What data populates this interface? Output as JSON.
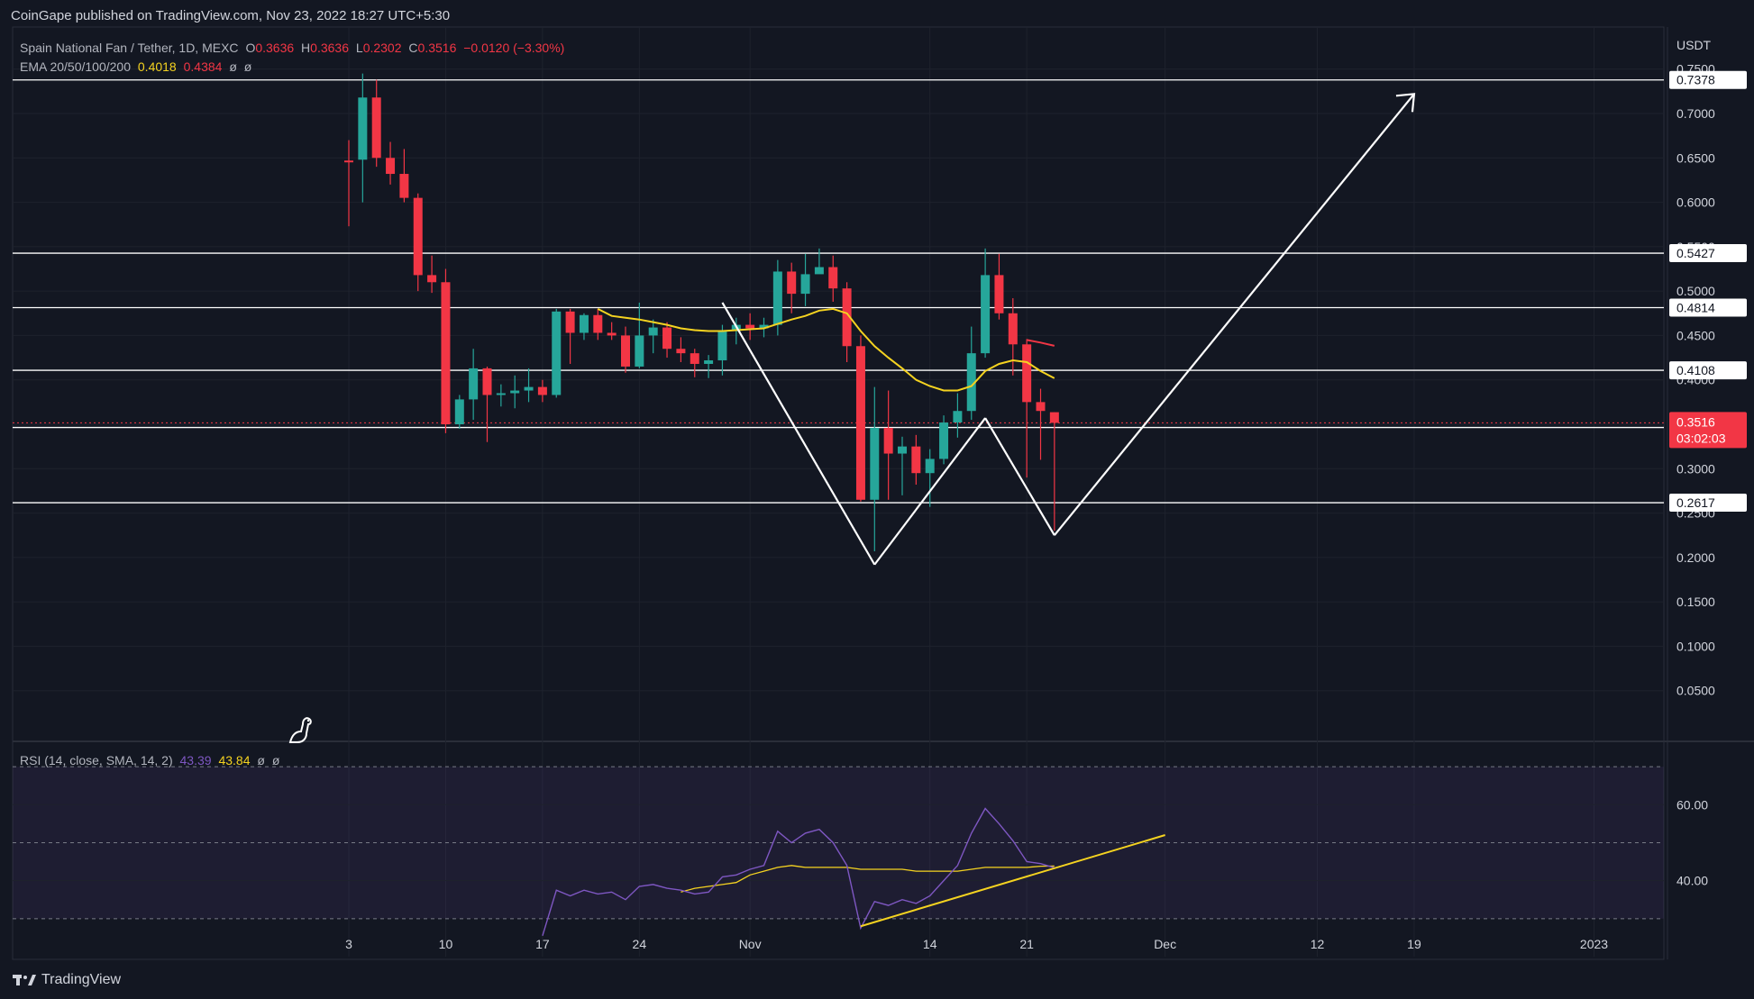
{
  "publisher": "CoinGape published on TradingView.com, Nov 23, 2022 18:27 UTC+5:30",
  "legend": {
    "symbol": "Spain National Fan / Tether, 1D, MEXC",
    "o_label": "O",
    "o_value": "0.3636",
    "h_label": "H",
    "h_value": "0.3636",
    "l_label": "L",
    "l_value": "0.2302",
    "c_label": "C",
    "c_value": "0.3516",
    "change": "−0.0120 (−3.30%)",
    "ema_label": "EMA 20/50/100/200",
    "ema_v1": "0.4018",
    "ema_v2": "0.4384",
    "ema_v3": "ø",
    "ema_v4": "ø",
    "rsi_label": "RSI (14, close, SMA, 14, 2)",
    "rsi_v1": "43.39",
    "rsi_v2": "43.84",
    "rsi_v3": "ø",
    "rsi_v4": "ø"
  },
  "colors": {
    "background": "#131722",
    "up": "#26a69a",
    "down": "#f23645",
    "ema20": "#f5d320",
    "ema50": "#f23645",
    "rsi": "#7e57c2",
    "rsi_ma": "#f5d320",
    "grid": "#1e222d",
    "lines": "#ffffff"
  },
  "footer": {
    "brand": "TradingView"
  },
  "chart_data": {
    "type": "candlestick",
    "price_unit": "USDT",
    "ylim": [
      0.0,
      0.77
    ],
    "price_ticks": [
      "0.7500",
      "0.7000",
      "0.6500",
      "0.6000",
      "0.5500",
      "0.5000",
      "0.4500",
      "0.4000",
      "0.3500",
      "0.3000",
      "0.2500",
      "0.2000",
      "0.1500",
      "0.1000",
      "0.0500"
    ],
    "x_ticks": [
      {
        "label": "3",
        "day": 3
      },
      {
        "label": "10",
        "day": 10
      },
      {
        "label": "17",
        "day": 17
      },
      {
        "label": "24",
        "day": 24
      },
      {
        "label": "Nov",
        "day": 32
      },
      {
        "label": "14",
        "day": 45
      },
      {
        "label": "21",
        "day": 52
      },
      {
        "label": "Dec",
        "day": 62
      },
      {
        "label": "12",
        "day": 73
      },
      {
        "label": "19",
        "day": 80
      },
      {
        "label": "2023",
        "day": 93
      }
    ],
    "candles": [
      {
        "day": 3,
        "o": 0.647,
        "h": 0.67,
        "l": 0.573,
        "c": 0.645
      },
      {
        "day": 4,
        "o": 0.648,
        "h": 0.745,
        "l": 0.6,
        "c": 0.718
      },
      {
        "day": 5,
        "o": 0.718,
        "h": 0.738,
        "l": 0.64,
        "c": 0.65
      },
      {
        "day": 6,
        "o": 0.65,
        "h": 0.668,
        "l": 0.62,
        "c": 0.632
      },
      {
        "day": 7,
        "o": 0.632,
        "h": 0.66,
        "l": 0.6,
        "c": 0.605
      },
      {
        "day": 8,
        "o": 0.605,
        "h": 0.61,
        "l": 0.5,
        "c": 0.518
      },
      {
        "day": 9,
        "o": 0.518,
        "h": 0.54,
        "l": 0.498,
        "c": 0.51
      },
      {
        "day": 10,
        "o": 0.51,
        "h": 0.525,
        "l": 0.34,
        "c": 0.35
      },
      {
        "day": 11,
        "o": 0.35,
        "h": 0.383,
        "l": 0.345,
        "c": 0.378
      },
      {
        "day": 12,
        "o": 0.378,
        "h": 0.435,
        "l": 0.355,
        "c": 0.413
      },
      {
        "day": 13,
        "o": 0.413,
        "h": 0.415,
        "l": 0.33,
        "c": 0.383
      },
      {
        "day": 14,
        "o": 0.383,
        "h": 0.395,
        "l": 0.37,
        "c": 0.385
      },
      {
        "day": 15,
        "o": 0.385,
        "h": 0.405,
        "l": 0.368,
        "c": 0.388
      },
      {
        "day": 16,
        "o": 0.388,
        "h": 0.413,
        "l": 0.375,
        "c": 0.392
      },
      {
        "day": 17,
        "o": 0.392,
        "h": 0.4,
        "l": 0.375,
        "c": 0.383
      },
      {
        "day": 18,
        "o": 0.383,
        "h": 0.48,
        "l": 0.38,
        "c": 0.477
      },
      {
        "day": 19,
        "o": 0.477,
        "h": 0.48,
        "l": 0.418,
        "c": 0.453
      },
      {
        "day": 20,
        "o": 0.453,
        "h": 0.475,
        "l": 0.445,
        "c": 0.473
      },
      {
        "day": 21,
        "o": 0.473,
        "h": 0.48,
        "l": 0.445,
        "c": 0.453
      },
      {
        "day": 22,
        "o": 0.453,
        "h": 0.465,
        "l": 0.445,
        "c": 0.45
      },
      {
        "day": 23,
        "o": 0.45,
        "h": 0.46,
        "l": 0.408,
        "c": 0.415
      },
      {
        "day": 24,
        "o": 0.415,
        "h": 0.487,
        "l": 0.413,
        "c": 0.45
      },
      {
        "day": 25,
        "o": 0.45,
        "h": 0.468,
        "l": 0.43,
        "c": 0.459
      },
      {
        "day": 26,
        "o": 0.459,
        "h": 0.465,
        "l": 0.425,
        "c": 0.435
      },
      {
        "day": 27,
        "o": 0.435,
        "h": 0.448,
        "l": 0.42,
        "c": 0.43
      },
      {
        "day": 28,
        "o": 0.43,
        "h": 0.435,
        "l": 0.403,
        "c": 0.418
      },
      {
        "day": 29,
        "o": 0.418,
        "h": 0.428,
        "l": 0.402,
        "c": 0.422
      },
      {
        "day": 30,
        "o": 0.422,
        "h": 0.462,
        "l": 0.405,
        "c": 0.455
      },
      {
        "day": 31,
        "o": 0.455,
        "h": 0.47,
        "l": 0.44,
        "c": 0.462
      },
      {
        "day": 32,
        "o": 0.462,
        "h": 0.475,
        "l": 0.445,
        "c": 0.458
      },
      {
        "day": 33,
        "o": 0.458,
        "h": 0.47,
        "l": 0.448,
        "c": 0.462
      },
      {
        "day": 34,
        "o": 0.462,
        "h": 0.535,
        "l": 0.45,
        "c": 0.522
      },
      {
        "day": 35,
        "o": 0.522,
        "h": 0.532,
        "l": 0.475,
        "c": 0.497
      },
      {
        "day": 36,
        "o": 0.497,
        "h": 0.542,
        "l": 0.483,
        "c": 0.519
      },
      {
        "day": 37,
        "o": 0.519,
        "h": 0.548,
        "l": 0.52,
        "c": 0.527
      },
      {
        "day": 38,
        "o": 0.527,
        "h": 0.54,
        "l": 0.488,
        "c": 0.503
      },
      {
        "day": 39,
        "o": 0.503,
        "h": 0.51,
        "l": 0.42,
        "c": 0.438
      },
      {
        "day": 40,
        "o": 0.438,
        "h": 0.45,
        "l": 0.263,
        "c": 0.265
      },
      {
        "day": 41,
        "o": 0.265,
        "h": 0.392,
        "l": 0.207,
        "c": 0.346
      },
      {
        "day": 42,
        "o": 0.346,
        "h": 0.388,
        "l": 0.265,
        "c": 0.317
      },
      {
        "day": 43,
        "o": 0.317,
        "h": 0.336,
        "l": 0.27,
        "c": 0.325
      },
      {
        "day": 44,
        "o": 0.325,
        "h": 0.338,
        "l": 0.282,
        "c": 0.295
      },
      {
        "day": 45,
        "o": 0.295,
        "h": 0.322,
        "l": 0.257,
        "c": 0.311
      },
      {
        "day": 46,
        "o": 0.311,
        "h": 0.36,
        "l": 0.305,
        "c": 0.352
      },
      {
        "day": 47,
        "o": 0.352,
        "h": 0.385,
        "l": 0.335,
        "c": 0.365
      },
      {
        "day": 48,
        "o": 0.365,
        "h": 0.46,
        "l": 0.355,
        "c": 0.43
      },
      {
        "day": 49,
        "o": 0.43,
        "h": 0.548,
        "l": 0.425,
        "c": 0.518
      },
      {
        "day": 50,
        "o": 0.518,
        "h": 0.542,
        "l": 0.468,
        "c": 0.475
      },
      {
        "day": 51,
        "o": 0.475,
        "h": 0.492,
        "l": 0.405,
        "c": 0.44
      },
      {
        "day": 52,
        "o": 0.44,
        "h": 0.446,
        "l": 0.29,
        "c": 0.375
      },
      {
        "day": 53,
        "o": 0.375,
        "h": 0.39,
        "l": 0.31,
        "c": 0.365
      },
      {
        "day": 54,
        "o": 0.3636,
        "h": 0.3636,
        "l": 0.2302,
        "c": 0.3516
      }
    ],
    "ema20": [
      {
        "day": 21,
        "v": 0.48
      },
      {
        "day": 22,
        "v": 0.472
      },
      {
        "day": 23,
        "v": 0.47
      },
      {
        "day": 24,
        "v": 0.468
      },
      {
        "day": 25,
        "v": 0.465
      },
      {
        "day": 26,
        "v": 0.462
      },
      {
        "day": 27,
        "v": 0.458
      },
      {
        "day": 28,
        "v": 0.456
      },
      {
        "day": 29,
        "v": 0.455
      },
      {
        "day": 30,
        "v": 0.455
      },
      {
        "day": 31,
        "v": 0.456
      },
      {
        "day": 32,
        "v": 0.457
      },
      {
        "day": 33,
        "v": 0.458
      },
      {
        "day": 34,
        "v": 0.463
      },
      {
        "day": 35,
        "v": 0.468
      },
      {
        "day": 36,
        "v": 0.472
      },
      {
        "day": 37,
        "v": 0.478
      },
      {
        "day": 38,
        "v": 0.48
      },
      {
        "day": 39,
        "v": 0.475
      },
      {
        "day": 40,
        "v": 0.455
      },
      {
        "day": 41,
        "v": 0.438
      },
      {
        "day": 42,
        "v": 0.425
      },
      {
        "day": 43,
        "v": 0.413
      },
      {
        "day": 44,
        "v": 0.4
      },
      {
        "day": 45,
        "v": 0.393
      },
      {
        "day": 46,
        "v": 0.388
      },
      {
        "day": 47,
        "v": 0.388
      },
      {
        "day": 48,
        "v": 0.393
      },
      {
        "day": 49,
        "v": 0.41
      },
      {
        "day": 50,
        "v": 0.418
      },
      {
        "day": 51,
        "v": 0.422
      },
      {
        "day": 52,
        "v": 0.42
      },
      {
        "day": 53,
        "v": 0.41
      },
      {
        "day": 54,
        "v": 0.4018
      }
    ],
    "ema50": [
      {
        "day": 52,
        "v": 0.445
      },
      {
        "day": 53,
        "v": 0.442
      },
      {
        "day": 54,
        "v": 0.4384
      }
    ],
    "levels": [
      {
        "value": 0.7378,
        "label": "0.7378"
      },
      {
        "value": 0.5427,
        "label": "0.5427"
      },
      {
        "value": 0.4814,
        "label": "0.4814"
      },
      {
        "value": 0.4108,
        "label": "0.4108"
      },
      {
        "value": 0.3464,
        "label": "0.3464"
      },
      {
        "value": 0.2617,
        "label": "0.2617"
      }
    ],
    "last_price": {
      "value": 0.3516,
      "label": "0.3516",
      "countdown": "03:02:03"
    },
    "pattern_lines": [
      {
        "d1": 30,
        "v1": 0.487,
        "d2": 41,
        "v2": 0.192
      },
      {
        "d1": 41,
        "v1": 0.192,
        "d2": 49,
        "v2": 0.357
      },
      {
        "d1": 49,
        "v1": 0.357,
        "d2": 54,
        "v2": 0.225
      },
      {
        "d1": 54,
        "v1": 0.225,
        "d2": 80,
        "v2": 0.722
      }
    ],
    "rsi": {
      "ylim": [
        20,
        75
      ],
      "ticks": [
        "60.00",
        "40.00"
      ],
      "band_upper": 70,
      "band_mid": 50,
      "band_lower": 30,
      "values": [
        {
          "day": 17,
          "v": 25.5
        },
        {
          "day": 18,
          "v": 37.5
        },
        {
          "day": 19,
          "v": 36.0
        },
        {
          "day": 20,
          "v": 37.5
        },
        {
          "day": 21,
          "v": 36.5
        },
        {
          "day": 22,
          "v": 37.0
        },
        {
          "day": 23,
          "v": 35.0
        },
        {
          "day": 24,
          "v": 38.5
        },
        {
          "day": 25,
          "v": 39.0
        },
        {
          "day": 26,
          "v": 38.0
        },
        {
          "day": 27,
          "v": 37.5
        },
        {
          "day": 28,
          "v": 36.5
        },
        {
          "day": 29,
          "v": 37.0
        },
        {
          "day": 30,
          "v": 41.0
        },
        {
          "day": 31,
          "v": 41.5
        },
        {
          "day": 32,
          "v": 43.0
        },
        {
          "day": 33,
          "v": 44.0
        },
        {
          "day": 34,
          "v": 53.0
        },
        {
          "day": 35,
          "v": 50.0
        },
        {
          "day": 36,
          "v": 52.5
        },
        {
          "day": 37,
          "v": 53.5
        },
        {
          "day": 38,
          "v": 50.0
        },
        {
          "day": 39,
          "v": 44.0
        },
        {
          "day": 40,
          "v": 27.5
        },
        {
          "day": 41,
          "v": 34.5
        },
        {
          "day": 42,
          "v": 33.5
        },
        {
          "day": 43,
          "v": 35.0
        },
        {
          "day": 44,
          "v": 34.0
        },
        {
          "day": 45,
          "v": 36.0
        },
        {
          "day": 46,
          "v": 40.0
        },
        {
          "day": 47,
          "v": 44.0
        },
        {
          "day": 48,
          "v": 52.5
        },
        {
          "day": 49,
          "v": 59.0
        },
        {
          "day": 50,
          "v": 55.0
        },
        {
          "day": 51,
          "v": 50.5
        },
        {
          "day": 52,
          "v": 45.0
        },
        {
          "day": 53,
          "v": 44.5
        },
        {
          "day": 54,
          "v": 43.39
        }
      ],
      "ma": [
        {
          "day": 27,
          "v": 37.0
        },
        {
          "day": 28,
          "v": 38.0
        },
        {
          "day": 29,
          "v": 38.5
        },
        {
          "day": 30,
          "v": 39.0
        },
        {
          "day": 31,
          "v": 39.5
        },
        {
          "day": 32,
          "v": 41.5
        },
        {
          "day": 33,
          "v": 42.5
        },
        {
          "day": 34,
          "v": 43.5
        },
        {
          "day": 35,
          "v": 44.0
        },
        {
          "day": 36,
          "v": 43.5
        },
        {
          "day": 37,
          "v": 43.5
        },
        {
          "day": 38,
          "v": 43.5
        },
        {
          "day": 39,
          "v": 43.5
        },
        {
          "day": 40,
          "v": 43.0
        },
        {
          "day": 41,
          "v": 43.0
        },
        {
          "day": 42,
          "v": 43.0
        },
        {
          "day": 43,
          "v": 43.0
        },
        {
          "day": 44,
          "v": 42.5
        },
        {
          "day": 45,
          "v": 42.5
        },
        {
          "day": 46,
          "v": 42.5
        },
        {
          "day": 47,
          "v": 42.5
        },
        {
          "day": 48,
          "v": 43.0
        },
        {
          "day": 49,
          "v": 43.5
        },
        {
          "day": 50,
          "v": 43.5
        },
        {
          "day": 51,
          "v": 43.5
        },
        {
          "day": 52,
          "v": 43.5
        },
        {
          "day": 53,
          "v": 43.8
        },
        {
          "day": 54,
          "v": 43.84
        }
      ],
      "trendline": {
        "d1": 40,
        "v1": 28.0,
        "d2": 62,
        "v2": 52.0
      }
    }
  }
}
